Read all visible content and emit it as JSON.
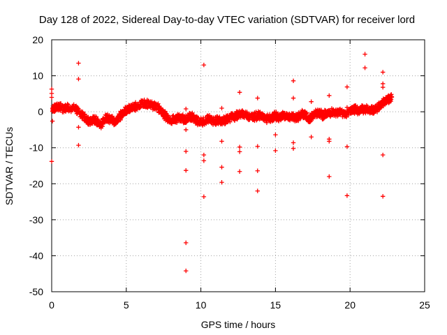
{
  "chart_data": {
    "type": "scatter",
    "title": "Day 128 of 2022, Sidereal Day-to-day VTEC variation (SDTVAR) for receiver lord",
    "xlabel": "GPS time / hours",
    "ylabel": "SDTVAR / TECUs",
    "xlim": [
      0,
      25
    ],
    "ylim": [
      -50,
      20
    ],
    "xticks": [
      0,
      5,
      10,
      15,
      20,
      25
    ],
    "yticks": [
      20,
      10,
      0,
      -10,
      -20,
      -30,
      -40,
      -50
    ],
    "xtick_labels": [
      "0",
      "5",
      "10",
      "15",
      "20",
      "25"
    ],
    "ytick_labels": [
      "20",
      "10",
      "0",
      "-10",
      "-20",
      "-30",
      "-40",
      "-50"
    ],
    "grid": true,
    "marker": "+",
    "color": "#ff0000",
    "main_trace": [
      [
        0.05,
        1.0
      ],
      [
        0.2,
        0.8
      ],
      [
        0.3,
        1.5
      ],
      [
        0.5,
        1.2
      ],
      [
        0.8,
        1.0
      ],
      [
        1.0,
        1.3
      ],
      [
        1.3,
        0.6
      ],
      [
        1.6,
        1.0
      ],
      [
        1.8,
        0.2
      ],
      [
        2.1,
        -1.0
      ],
      [
        2.3,
        -2.2
      ],
      [
        2.5,
        -2.6
      ],
      [
        2.7,
        -2.3
      ],
      [
        2.9,
        -2.0
      ],
      [
        3.1,
        -3.0
      ],
      [
        3.3,
        -3.5
      ],
      [
        3.5,
        -2.5
      ],
      [
        3.7,
        -1.5
      ],
      [
        3.9,
        -2.0
      ],
      [
        4.1,
        -2.5
      ],
      [
        4.3,
        -2.7
      ],
      [
        4.5,
        -1.5
      ],
      [
        4.7,
        -0.6
      ],
      [
        4.9,
        0.1
      ],
      [
        5.1,
        0.6
      ],
      [
        5.3,
        0.9
      ],
      [
        5.5,
        1.3
      ],
      [
        5.8,
        1.8
      ],
      [
        6.1,
        2.1
      ],
      [
        6.3,
        2.3
      ],
      [
        6.6,
        2.0
      ],
      [
        6.9,
        1.6
      ],
      [
        7.2,
        0.9
      ],
      [
        7.4,
        0.0
      ],
      [
        7.6,
        -1.0
      ],
      [
        7.8,
        -2.0
      ],
      [
        8.0,
        -2.3
      ],
      [
        8.2,
        -2.2
      ],
      [
        8.4,
        -1.8
      ],
      [
        8.6,
        -1.6
      ],
      [
        8.8,
        -2.0
      ],
      [
        9.0,
        -2.3
      ],
      [
        9.2,
        -1.5
      ],
      [
        9.4,
        -1.2
      ],
      [
        9.6,
        -1.9
      ],
      [
        9.8,
        -2.6
      ],
      [
        10.0,
        -3.0
      ],
      [
        10.2,
        -2.8
      ],
      [
        10.4,
        -2.2
      ],
      [
        10.6,
        -2.0
      ],
      [
        10.8,
        -2.4
      ],
      [
        11.0,
        -2.6
      ],
      [
        11.2,
        -2.3
      ],
      [
        11.4,
        -2.8
      ],
      [
        11.6,
        -2.3
      ],
      [
        11.8,
        -1.9
      ],
      [
        12.0,
        -1.6
      ],
      [
        12.2,
        -1.3
      ],
      [
        12.4,
        -1.1
      ],
      [
        12.6,
        -0.9
      ],
      [
        12.8,
        -0.7
      ],
      [
        13.0,
        -0.8
      ],
      [
        13.2,
        -1.3
      ],
      [
        13.4,
        -1.6
      ],
      [
        13.6,
        -1.3
      ],
      [
        13.8,
        -1.1
      ],
      [
        14.0,
        -1.0
      ],
      [
        14.2,
        -1.4
      ],
      [
        14.4,
        -2.0
      ],
      [
        14.6,
        -1.9
      ],
      [
        14.8,
        -1.4
      ],
      [
        15.0,
        -1.1
      ],
      [
        15.2,
        -1.6
      ],
      [
        15.4,
        -1.1
      ],
      [
        15.6,
        -1.1
      ],
      [
        15.8,
        -1.6
      ],
      [
        16.0,
        -1.3
      ],
      [
        16.2,
        -1.6
      ],
      [
        16.4,
        -1.9
      ],
      [
        16.6,
        -1.1
      ],
      [
        16.8,
        -0.6
      ],
      [
        17.0,
        -0.9
      ],
      [
        17.2,
        -2.1
      ],
      [
        17.4,
        -1.6
      ],
      [
        17.6,
        -0.6
      ],
      [
        17.8,
        -0.3
      ],
      [
        18.0,
        -0.6
      ],
      [
        18.2,
        -0.9
      ],
      [
        18.4,
        -0.6
      ],
      [
        18.6,
        -0.3
      ],
      [
        18.8,
        -0.1
      ],
      [
        19.0,
        -0.4
      ],
      [
        19.2,
        -0.1
      ],
      [
        19.4,
        0.1
      ],
      [
        19.6,
        -0.6
      ],
      [
        19.8,
        -0.4
      ],
      [
        20.0,
        0.1
      ],
      [
        20.2,
        0.4
      ],
      [
        20.4,
        0.6
      ],
      [
        20.6,
        0.4
      ],
      [
        20.8,
        0.6
      ],
      [
        21.0,
        0.9
      ],
      [
        21.2,
        0.6
      ],
      [
        21.4,
        0.4
      ],
      [
        21.6,
        0.6
      ],
      [
        21.8,
        1.1
      ],
      [
        22.0,
        1.9
      ],
      [
        22.2,
        2.4
      ],
      [
        22.4,
        3.1
      ],
      [
        22.6,
        3.6
      ],
      [
        22.8,
        4.1
      ]
    ],
    "outliers": [
      [
        0.0,
        6.3
      ],
      [
        0.0,
        5.1
      ],
      [
        0.0,
        4.0
      ],
      [
        0.05,
        -2.6
      ],
      [
        0.0,
        -13.8
      ],
      [
        1.8,
        13.5
      ],
      [
        1.8,
        9.1
      ],
      [
        1.8,
        -4.3
      ],
      [
        1.8,
        -9.3
      ],
      [
        9.0,
        0.8
      ],
      [
        9.0,
        -5.0
      ],
      [
        9.0,
        -11.0
      ],
      [
        9.0,
        -16.3
      ],
      [
        9.0,
        -36.4
      ],
      [
        9.0,
        -44.2
      ],
      [
        10.2,
        13.0
      ],
      [
        10.2,
        -12.0
      ],
      [
        10.2,
        -13.6
      ],
      [
        10.2,
        -23.6
      ],
      [
        11.4,
        1.0
      ],
      [
        11.4,
        -8.2
      ],
      [
        11.4,
        -15.4
      ],
      [
        11.4,
        -19.6
      ],
      [
        12.6,
        5.4
      ],
      [
        12.6,
        0.2
      ],
      [
        12.6,
        -9.8
      ],
      [
        12.6,
        -11.1
      ],
      [
        12.6,
        -16.6
      ],
      [
        13.8,
        3.8
      ],
      [
        13.8,
        -9.6
      ],
      [
        13.8,
        -16.4
      ],
      [
        13.8,
        -22.0
      ],
      [
        15.0,
        -6.4
      ],
      [
        15.0,
        -10.8
      ],
      [
        16.2,
        8.6
      ],
      [
        16.2,
        3.8
      ],
      [
        16.2,
        -8.6
      ],
      [
        16.2,
        -10.2
      ],
      [
        17.4,
        2.8
      ],
      [
        17.4,
        -7.0
      ],
      [
        18.6,
        4.5
      ],
      [
        18.6,
        -7.6
      ],
      [
        18.6,
        -8.2
      ],
      [
        18.6,
        -18.0
      ],
      [
        19.8,
        6.9
      ],
      [
        19.8,
        1.2
      ],
      [
        19.8,
        -9.7
      ],
      [
        19.8,
        -23.3
      ],
      [
        21.0,
        16.0
      ],
      [
        21.0,
        12.2
      ],
      [
        22.2,
        11.0
      ],
      [
        22.2,
        7.8
      ],
      [
        22.2,
        6.8
      ],
      [
        22.2,
        -12.0
      ],
      [
        22.2,
        -23.5
      ]
    ]
  }
}
